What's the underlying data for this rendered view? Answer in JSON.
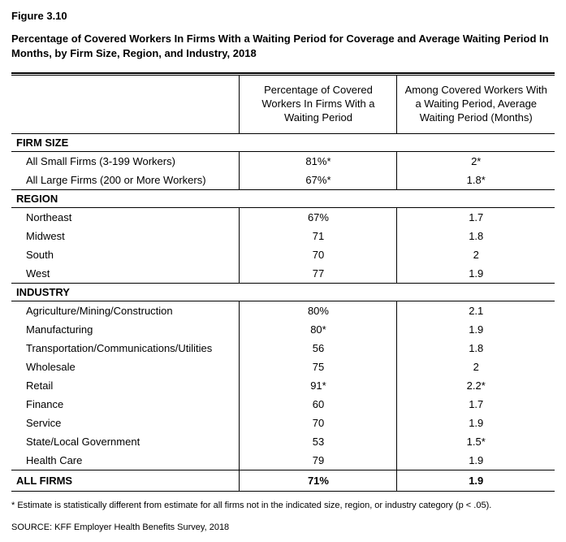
{
  "figure_number": "Figure 3.10",
  "figure_title": "Percentage of Covered Workers In Firms With a Waiting Period for Coverage and Average Waiting Period In Months, by Firm Size, Region, and Industry, 2018",
  "columns": {
    "col1": "Percentage of Covered Workers In Firms With a Waiting Period",
    "col2": "Among Covered Workers With a Waiting Period, Average Waiting Period (Months)"
  },
  "sections": {
    "firm_size": {
      "header": "FIRM SIZE",
      "rows": [
        {
          "label": "All Small Firms (3-199 Workers)",
          "v1": "81%*",
          "v2": "2*"
        },
        {
          "label": "All Large Firms (200 or More Workers)",
          "v1": "67%*",
          "v2": "1.8*"
        }
      ]
    },
    "region": {
      "header": "REGION",
      "rows": [
        {
          "label": "Northeast",
          "v1": "67%",
          "v2": "1.7"
        },
        {
          "label": "Midwest",
          "v1": "71",
          "v2": "1.8"
        },
        {
          "label": "South",
          "v1": "70",
          "v2": "2"
        },
        {
          "label": "West",
          "v1": "77",
          "v2": "1.9"
        }
      ]
    },
    "industry": {
      "header": "INDUSTRY",
      "rows": [
        {
          "label": "Agriculture/Mining/Construction",
          "v1": "80%",
          "v2": "2.1"
        },
        {
          "label": "Manufacturing",
          "v1": "80*",
          "v2": "1.9"
        },
        {
          "label": "Transportation/Communications/Utilities",
          "v1": "56",
          "v2": "1.8"
        },
        {
          "label": "Wholesale",
          "v1": "75",
          "v2": "2"
        },
        {
          "label": "Retail",
          "v1": "91*",
          "v2": "2.2*"
        },
        {
          "label": "Finance",
          "v1": "60",
          "v2": "1.7"
        },
        {
          "label": "Service",
          "v1": "70",
          "v2": "1.9"
        },
        {
          "label": "State/Local Government",
          "v1": "53",
          "v2": "1.5*"
        },
        {
          "label": "Health Care",
          "v1": "79",
          "v2": "1.9"
        }
      ]
    }
  },
  "all_firms": {
    "label": "ALL FIRMS",
    "v1": "71%",
    "v2": "1.9"
  },
  "footnote": "* Estimate is statistically different from estimate for all firms not in the indicated size, region, or industry category (p < .05).",
  "source": "SOURCE: KFF Employer Health Benefits Survey, 2018"
}
